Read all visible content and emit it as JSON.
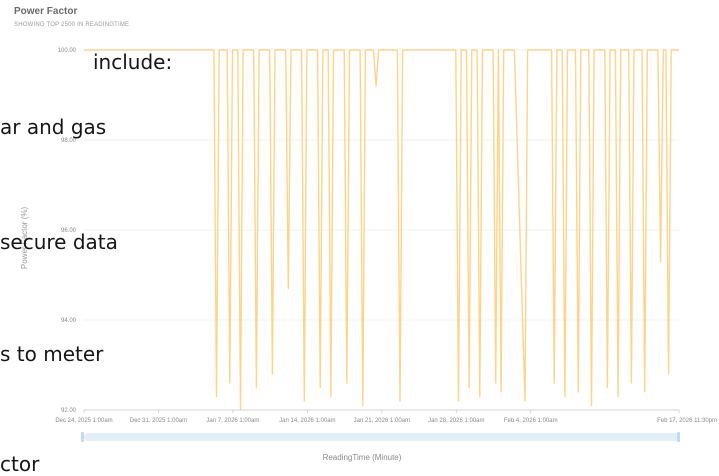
{
  "header": {
    "title": "Power Factor",
    "subtitle": "SHOWING TOP 2500 IN READINGTIME"
  },
  "overlay": {
    "lines": [
      "include:",
      "ar and gas",
      "secure data",
      "s to meter",
      "ctor"
    ]
  },
  "colors": {
    "series": "#fdd48a",
    "grid": "#eeeeee",
    "brush": "#e2eff8"
  },
  "chart_data": {
    "type": "line",
    "title": "Power Factor",
    "subtitle": "SHOWING TOP 2500 IN READINGTIME",
    "xlabel": "ReadingTime (Minute)",
    "ylabel": "Power Factor (%)",
    "ylim": [
      92,
      100
    ],
    "yticks": [
      "100.00",
      "98.00",
      "96.00",
      "94.00",
      "92.00"
    ],
    "xticks": [
      "Dec 24, 2025 1:00am",
      "Dec 31, 2025 1:00am",
      "Jan 7, 2026 1:00am",
      "Jan 14, 2026 1:00am",
      "Jan 21, 2026 1:00am",
      "Jan 28, 2026 1:00am",
      "Feb 4, 2026 1:00am",
      "Feb 17, 2026 11:30pm"
    ],
    "xrange": [
      "Dec 24, 2025 1:00am",
      "Feb 17, 2026 11:30pm"
    ],
    "grid": true,
    "series": [
      {
        "values": [
          [
            "Dec 24, 2025 01:00",
            100.0
          ],
          [
            "Jan 5, 2026 06:00",
            100.0
          ],
          [
            "Jan 5, 2026 12:00",
            92.3
          ],
          [
            "Jan 5, 2026 18:00",
            100.0
          ],
          [
            "Jan 6, 2026 12:00",
            100.0
          ],
          [
            "Jan 6, 2026 18:00",
            92.6
          ],
          [
            "Jan 7, 2026 00:00",
            100.0
          ],
          [
            "Jan 7, 2026 12:00",
            100.0
          ],
          [
            "Jan 7, 2026 18:00",
            92.0
          ],
          [
            "Jan 8, 2026 00:00",
            100.0
          ],
          [
            "Jan 9, 2026 00:00",
            100.0
          ],
          [
            "Jan 9, 2026 06:00",
            92.5
          ],
          [
            "Jan 9, 2026 12:00",
            100.0
          ],
          [
            "Jan 10, 2026 12:00",
            100.0
          ],
          [
            "Jan 10, 2026 18:00",
            92.8
          ],
          [
            "Jan 11, 2026 00:00",
            100.0
          ],
          [
            "Jan 12, 2026 00:00",
            100.0
          ],
          [
            "Jan 12, 2026 06:00",
            94.7
          ],
          [
            "Jan 12, 2026 12:00",
            100.0
          ],
          [
            "Jan 13, 2026 12:00",
            100.0
          ],
          [
            "Jan 13, 2026 18:00",
            92.2
          ],
          [
            "Jan 14, 2026 00:00",
            100.0
          ],
          [
            "Jan 15, 2026 00:00",
            100.0
          ],
          [
            "Jan 15, 2026 06:00",
            92.5
          ],
          [
            "Jan 15, 2026 12:00",
            100.0
          ],
          [
            "Jan 16, 2026 00:00",
            100.0
          ],
          [
            "Jan 16, 2026 06:00",
            92.3
          ],
          [
            "Jan 16, 2026 12:00",
            100.0
          ],
          [
            "Jan 17, 2026 12:00",
            100.0
          ],
          [
            "Jan 17, 2026 18:00",
            92.6
          ],
          [
            "Jan 18, 2026 00:00",
            100.0
          ],
          [
            "Jan 19, 2026 00:00",
            100.0
          ],
          [
            "Jan 19, 2026 06:00",
            92.1
          ],
          [
            "Jan 19, 2026 12:00",
            100.0
          ],
          [
            "Jan 20, 2026 06:00",
            100.0
          ],
          [
            "Jan 20, 2026 12:00",
            99.2
          ],
          [
            "Jan 20, 2026 18:00",
            100.0
          ],
          [
            "Jan 22, 2026 12:00",
            100.0
          ],
          [
            "Jan 22, 2026 18:00",
            92.2
          ],
          [
            "Jan 23, 2026 00:00",
            100.0
          ],
          [
            "Jan 28, 2026 00:00",
            100.0
          ],
          [
            "Jan 28, 2026 06:00",
            92.2
          ],
          [
            "Jan 28, 2026 12:00",
            100.0
          ],
          [
            "Jan 29, 2026 00:00",
            100.0
          ],
          [
            "Jan 29, 2026 06:00",
            92.5
          ],
          [
            "Jan 29, 2026 12:00",
            100.0
          ],
          [
            "Jan 30, 2026 00:00",
            100.0
          ],
          [
            "Jan 30, 2026 06:00",
            92.3
          ],
          [
            "Jan 30, 2026 12:00",
            100.0
          ],
          [
            "Jan 31, 2026 12:00",
            100.0
          ],
          [
            "Jan 31, 2026 18:00",
            92.6
          ],
          [
            "Feb 1, 2026 00:00",
            100.0
          ],
          [
            "Feb 1, 2026 06:00",
            92.4
          ],
          [
            "Feb 1, 2026 12:00",
            100.0
          ],
          [
            "Feb 2, 2026 12:00",
            100.0
          ],
          [
            "Feb 3, 2026 12:00",
            92.2
          ],
          [
            "Feb 3, 2026 18:00",
            100.0
          ],
          [
            "Feb 6, 2026 00:00",
            100.0
          ],
          [
            "Feb 6, 2026 06:00",
            92.6
          ],
          [
            "Feb 6, 2026 12:00",
            100.0
          ],
          [
            "Feb 7, 2026 00:00",
            100.0
          ],
          [
            "Feb 7, 2026 06:00",
            92.3
          ],
          [
            "Feb 7, 2026 12:00",
            100.0
          ],
          [
            "Feb 8, 2026 06:00",
            100.0
          ],
          [
            "Feb 8, 2026 12:00",
            92.4
          ],
          [
            "Feb 8, 2026 18:00",
            100.0
          ],
          [
            "Feb 9, 2026 12:00",
            100.0
          ],
          [
            "Feb 9, 2026 18:00",
            92.1
          ],
          [
            "Feb 10, 2026 00:00",
            100.0
          ],
          [
            "Feb 11, 2026 00:00",
            100.0
          ],
          [
            "Feb 11, 2026 06:00",
            92.5
          ],
          [
            "Feb 11, 2026 12:00",
            100.0
          ],
          [
            "Feb 12, 2026 00:00",
            100.0
          ],
          [
            "Feb 12, 2026 06:00",
            92.3
          ],
          [
            "Feb 12, 2026 12:00",
            100.0
          ],
          [
            "Feb 13, 2026 06:00",
            100.0
          ],
          [
            "Feb 13, 2026 12:00",
            92.6
          ],
          [
            "Feb 13, 2026 18:00",
            100.0
          ],
          [
            "Feb 14, 2026 12:00",
            100.0
          ],
          [
            "Feb 14, 2026 18:00",
            92.4
          ],
          [
            "Feb 15, 2026 00:00",
            100.0
          ],
          [
            "Feb 16, 2026 00:00",
            100.0
          ],
          [
            "Feb 16, 2026 06:00",
            95.3
          ],
          [
            "Feb 16, 2026 12:00",
            100.0
          ],
          [
            "Feb 16, 2026 18:00",
            100.0
          ],
          [
            "Feb 17, 2026 00:00",
            92.8
          ],
          [
            "Feb 17, 2026 06:00",
            100.0
          ],
          [
            "Feb 17, 2026 23:30",
            100.0
          ]
        ]
      }
    ]
  }
}
